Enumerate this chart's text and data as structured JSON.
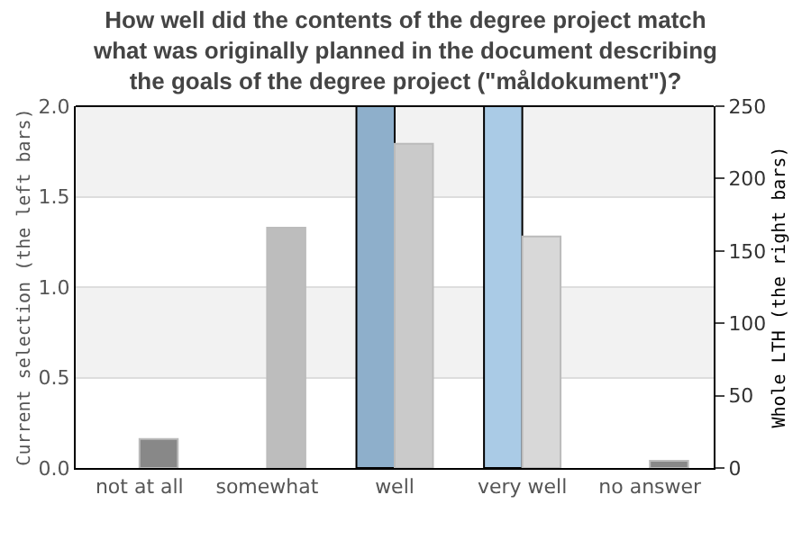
{
  "chart_data": {
    "type": "bar",
    "title": "How well did the contents of the degree project match\nwhat was originally planned in the document describing\nthe goals of the degree project (\"måldokument\")?",
    "ylabel": "Current selection (the left bars)",
    "y2label": "Whole LTH (the right bars)",
    "categories": [
      "not at all",
      "somewhat",
      "well",
      "very well",
      "no answer"
    ],
    "series": [
      {
        "colors": [
          "#8eafcb",
          "#8eafcb",
          "#8eafcb",
          "#aacbe6",
          "#aacbe6"
        ],
        "values": [
          0,
          0,
          2,
          2,
          0
        ]
      },
      {
        "axis": "y2",
        "colors": [
          "#888888",
          "#bdbdbd",
          "#cacaca",
          "#d8d8d8",
          "#888888"
        ],
        "values": [
          20,
          166,
          224,
          160,
          5
        ]
      }
    ],
    "ylim": [
      0,
      2
    ],
    "yticks": [
      {
        "value": 0,
        "label": "0.0"
      },
      {
        "value": 0.5,
        "label": "0.5"
      },
      {
        "value": 1,
        "label": "1.0"
      },
      {
        "value": 1.5,
        "label": "1.5"
      },
      {
        "value": 2,
        "label": "2.0"
      }
    ],
    "y2lim": [
      0,
      250
    ],
    "y2ticks": [
      0,
      50,
      100,
      150,
      200,
      250
    ],
    "grid": "y"
  }
}
